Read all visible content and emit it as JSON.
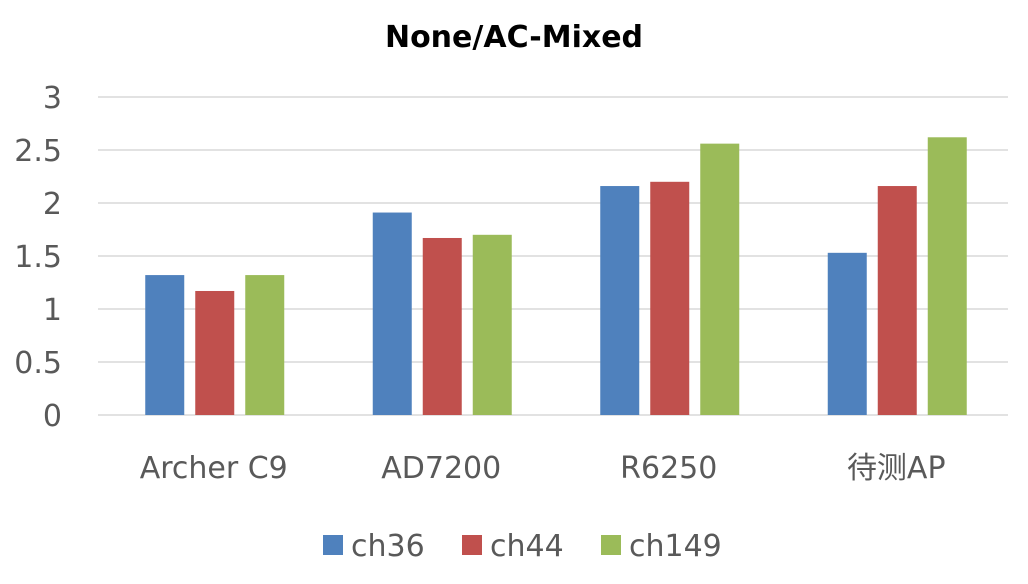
{
  "chart_data": {
    "type": "bar",
    "title": "None/AC-Mixed",
    "xlabel": "",
    "ylabel": "",
    "ylim": [
      0,
      3
    ],
    "yticks": [
      "0",
      "0.5",
      "1",
      "1.5",
      "2",
      "2.5",
      "3"
    ],
    "grid": true,
    "legend_position": "bottom",
    "categories": [
      "Archer C9",
      "AD7200",
      "R6250",
      "待测AP"
    ],
    "series": [
      {
        "name": "ch36",
        "color": "#4f81bd",
        "values": [
          1.32,
          1.91,
          2.16,
          1.53
        ]
      },
      {
        "name": "ch44",
        "color": "#c0504d",
        "values": [
          1.17,
          1.67,
          2.2,
          2.16
        ]
      },
      {
        "name": "ch149",
        "color": "#9bbb59",
        "values": [
          1.32,
          1.7,
          2.56,
          2.62
        ]
      }
    ]
  }
}
